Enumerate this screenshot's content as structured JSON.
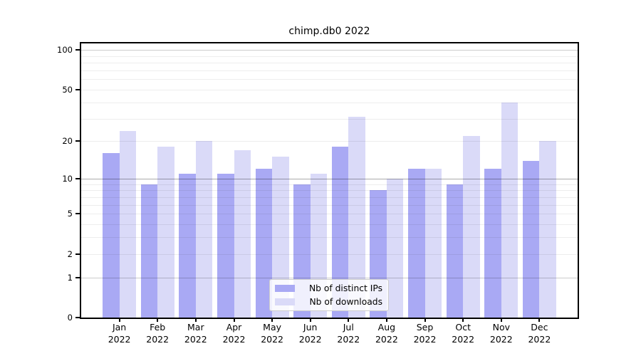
{
  "chart_data": {
    "type": "bar",
    "title": "chimp.db0 2022",
    "categories": [
      "Jan 2022",
      "Feb 2022",
      "Mar 2022",
      "Apr 2022",
      "May 2022",
      "Jun 2022",
      "Jul 2022",
      "Aug 2022",
      "Sep 2022",
      "Oct 2022",
      "Nov 2022",
      "Dec 2022"
    ],
    "series": [
      {
        "name": "Nb of distinct IPs",
        "color": "#a9a9f4",
        "values": [
          16,
          9,
          11,
          11,
          12,
          9,
          18,
          8,
          12,
          9,
          12,
          14
        ]
      },
      {
        "name": "Nb of downloads",
        "color": "#dadaf8",
        "values": [
          24,
          18,
          20,
          17,
          15,
          11,
          31,
          10,
          12,
          22,
          40,
          20
        ]
      }
    ],
    "xlabel": "",
    "ylabel": "",
    "yscale": "symlog (position proportional to ln(1+v))",
    "ylim": [
      0,
      112
    ],
    "yticks": [
      {
        "v": 0,
        "label": "0"
      },
      {
        "v": 1,
        "label": "1"
      },
      {
        "v": 2,
        "label": "2"
      },
      {
        "v": 5,
        "label": "5"
      },
      {
        "v": 10,
        "label": "10"
      },
      {
        "v": 20,
        "label": "20"
      },
      {
        "v": 50,
        "label": "50"
      },
      {
        "v": 100,
        "label": "100"
      }
    ],
    "grid": true,
    "gridlines": {
      "minor": [
        2,
        3,
        4,
        5,
        6,
        7,
        8,
        9,
        20,
        30,
        40,
        50,
        60,
        70,
        80,
        90
      ],
      "medium": [
        1,
        100
      ],
      "strong": [
        10
      ]
    },
    "legend_position": "lower center"
  },
  "legend": {
    "items": [
      {
        "label": "Nb of distinct IPs",
        "color": "#a9a9f4"
      },
      {
        "label": "Nb of downloads",
        "color": "#dadaf8"
      }
    ]
  },
  "colors": {
    "frame": "#000000",
    "background": "#ffffff",
    "bar_dark": "#a9a9f4",
    "bar_light": "#dadaf8"
  }
}
